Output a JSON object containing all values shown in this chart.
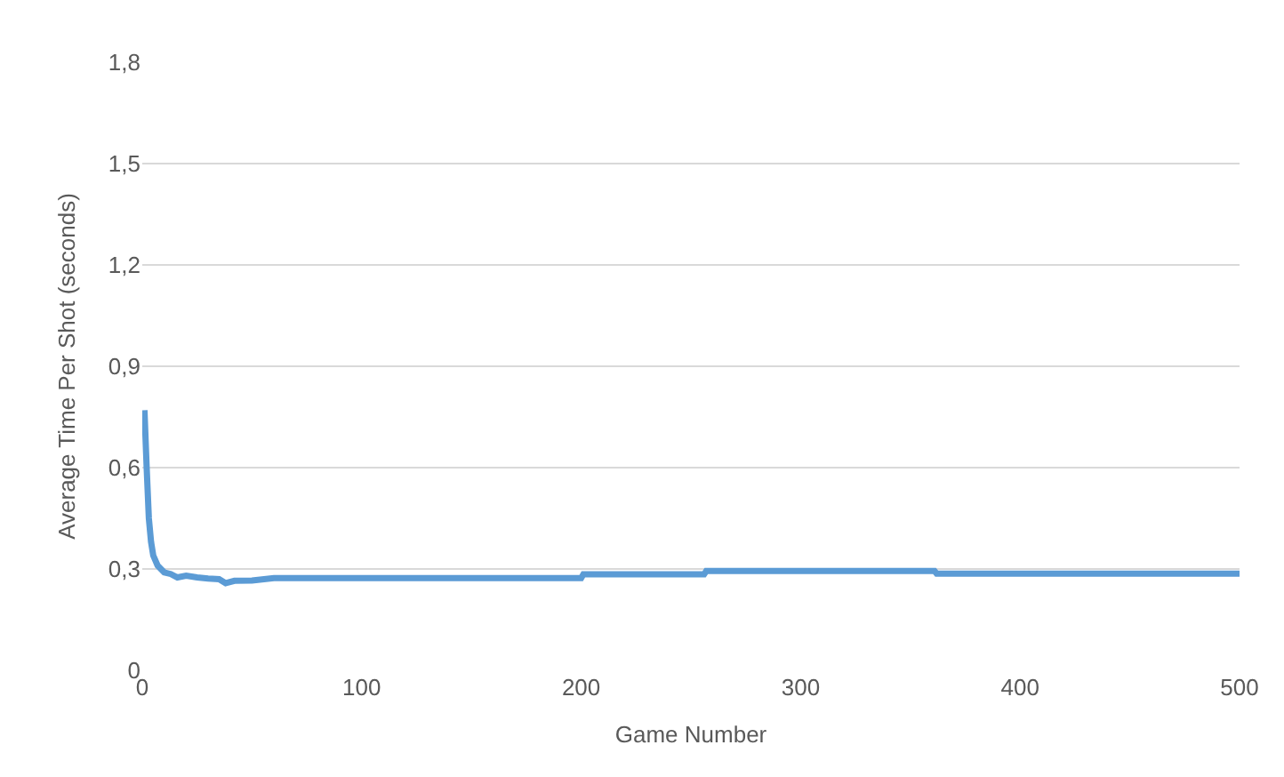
{
  "chart_data": {
    "type": "line",
    "xlabel": "Game Number",
    "ylabel": "Average Time Per Shot (seconds)",
    "x": [
      1,
      2,
      3,
      4,
      5,
      7,
      10,
      13,
      16,
      20,
      25,
      30,
      35,
      38,
      42,
      50,
      60,
      100,
      150,
      200,
      201,
      256,
      257,
      361,
      362,
      400,
      450,
      500
    ],
    "series": [
      {
        "color": "#5b9bd5",
        "values": [
          0.77,
          0.6,
          0.45,
          0.38,
          0.34,
          0.31,
          0.29,
          0.285,
          0.275,
          0.28,
          0.275,
          0.272,
          0.27,
          0.258,
          0.265,
          0.266,
          0.273,
          0.273,
          0.273,
          0.273,
          0.284,
          0.284,
          0.294,
          0.294,
          0.286,
          0.286,
          0.286,
          0.286
        ]
      }
    ],
    "xlim": [
      0,
      500
    ],
    "xticks": [
      0,
      100,
      200,
      300,
      400,
      500
    ],
    "ylim": [
      0,
      1.8
    ],
    "yticks": [
      0,
      {
        "value": 0.3,
        "label": "0,3"
      },
      {
        "value": 0.6,
        "label": "0,6"
      },
      {
        "value": 0.9,
        "label": "0,9"
      },
      {
        "value": 1.2,
        "label": "1,2"
      },
      {
        "value": 1.5,
        "label": "1,5"
      },
      {
        "value": 1.8,
        "label": "1,8"
      }
    ],
    "grid": "y",
    "marker": "none",
    "line_style": "solid"
  }
}
